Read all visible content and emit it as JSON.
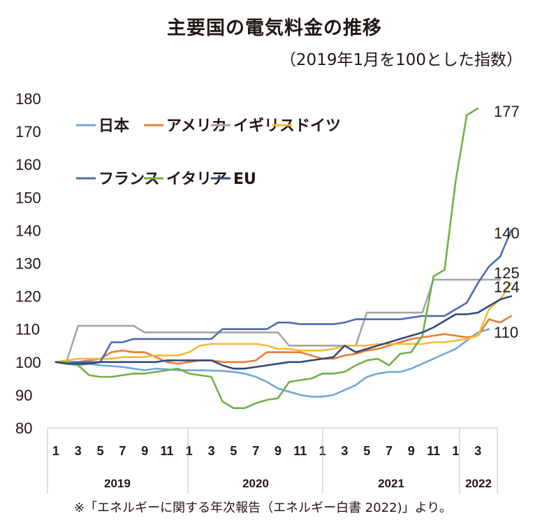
{
  "title": "主要国の電気料金の推移",
  "subtitle": "（2019年1月を100とした指数）",
  "note": "※「エネルギーに関する年次報告（エネルギー白書 2022)」より。",
  "chart_data": {
    "type": "line",
    "ylim": [
      80,
      180
    ],
    "yticks": [
      80,
      90,
      100,
      110,
      120,
      130,
      140,
      150,
      160,
      170,
      180
    ],
    "x_tick_labels": [
      "1",
      "3",
      "5",
      "7",
      "9",
      "11",
      "1",
      "3",
      "5",
      "7",
      "9",
      "11",
      "1",
      "3",
      "5",
      "7",
      "9",
      "11",
      "1",
      "3"
    ],
    "years": [
      "2019",
      "2020",
      "2021",
      "2022"
    ],
    "grid": false,
    "legend": "top-left",
    "end_labels": [
      "177",
      "140",
      "125",
      "124",
      "110"
    ],
    "series": [
      {
        "name": "日本",
        "color": "#6fa8d8",
        "values": [
          100,
          99.5,
          99,
          99.5,
          99,
          98.8,
          98.5,
          98,
          97.5,
          98,
          97.8,
          97.5,
          97.5,
          97.5,
          97.4,
          97.3,
          97,
          96.5,
          95.5,
          94,
          92,
          91,
          90,
          89.5,
          89.5,
          90,
          91.5,
          93,
          95.5,
          96.5,
          97,
          97,
          98,
          99.5,
          101,
          102.5,
          104,
          106.5,
          109,
          110
        ]
      },
      {
        "name": "アメリカ",
        "color": "#ec7d31",
        "values": [
          100,
          100,
          100,
          100.5,
          101,
          103,
          103.5,
          103,
          103,
          101.5,
          100,
          99.5,
          100,
          100.5,
          100.5,
          100,
          100,
          100,
          100.5,
          103,
          103,
          103,
          103,
          102,
          101,
          101,
          102,
          102.5,
          103.5,
          104,
          105,
          106,
          107,
          107.5,
          108,
          108.5,
          108,
          107.5,
          108,
          113,
          112,
          114
        ]
      },
      {
        "name": "イギリス",
        "color": "#a5a5a5",
        "values": [
          100,
          100.5,
          111,
          111,
          111,
          111,
          111,
          111,
          109,
          109,
          109,
          109,
          109,
          109,
          109,
          109,
          109,
          109,
          109,
          109,
          109,
          105,
          105,
          105,
          105,
          105,
          105,
          105,
          115,
          115,
          115,
          115,
          115,
          115,
          125,
          125,
          125,
          125,
          125,
          125,
          125
        ]
      },
      {
        "name": "ドイツ",
        "color": "#f6b93b",
        "values": [
          100,
          100.5,
          101,
          101,
          101,
          101,
          101.5,
          101.5,
          101.5,
          102,
          102,
          102,
          103,
          105,
          105.5,
          105.5,
          105.5,
          105.5,
          105.5,
          105,
          104,
          104,
          103.5,
          103.5,
          103.5,
          104,
          105,
          105,
          105,
          105.5,
          105.5,
          105.5,
          105.5,
          105.5,
          106,
          106,
          106.5,
          107,
          108,
          116,
          119,
          124
        ]
      },
      {
        "name": "フランス",
        "color": "#4a6cb3",
        "values": [
          100,
          100,
          100,
          100,
          100,
          106,
          106,
          107,
          107,
          107,
          107,
          107,
          107,
          107,
          107,
          110,
          110,
          110,
          110,
          110,
          112,
          112,
          111.5,
          111.5,
          111.5,
          111.5,
          112,
          113,
          113,
          113,
          113,
          113,
          113.5,
          114,
          114,
          114,
          116,
          118,
          124,
          129,
          132,
          140
        ]
      },
      {
        "name": "イタリア",
        "color": "#6fb243",
        "values": [
          100,
          100,
          99,
          96,
          95.5,
          95.5,
          96,
          96.5,
          96.5,
          97,
          97.5,
          98,
          96.5,
          96,
          95.5,
          88,
          86,
          86,
          87.5,
          88.5,
          89,
          94,
          94.5,
          95,
          96.5,
          96.5,
          97,
          99,
          100.5,
          101,
          99,
          102.5,
          103,
          108,
          126,
          128,
          155,
          175,
          177
        ]
      },
      {
        "name": "EU",
        "color": "#2f4b7c",
        "values": [
          100,
          99.5,
          99.5,
          99.5,
          100,
          100,
          100,
          100,
          100,
          100,
          100.5,
          100.5,
          100.5,
          100.5,
          100.5,
          99,
          98,
          98,
          98.5,
          99,
          99.5,
          100,
          100,
          100.5,
          101,
          101.5,
          105,
          103,
          104,
          105,
          106,
          107,
          108,
          109,
          110.5,
          112.5,
          114.5,
          114.5,
          115,
          117,
          119,
          120
        ]
      }
    ]
  }
}
